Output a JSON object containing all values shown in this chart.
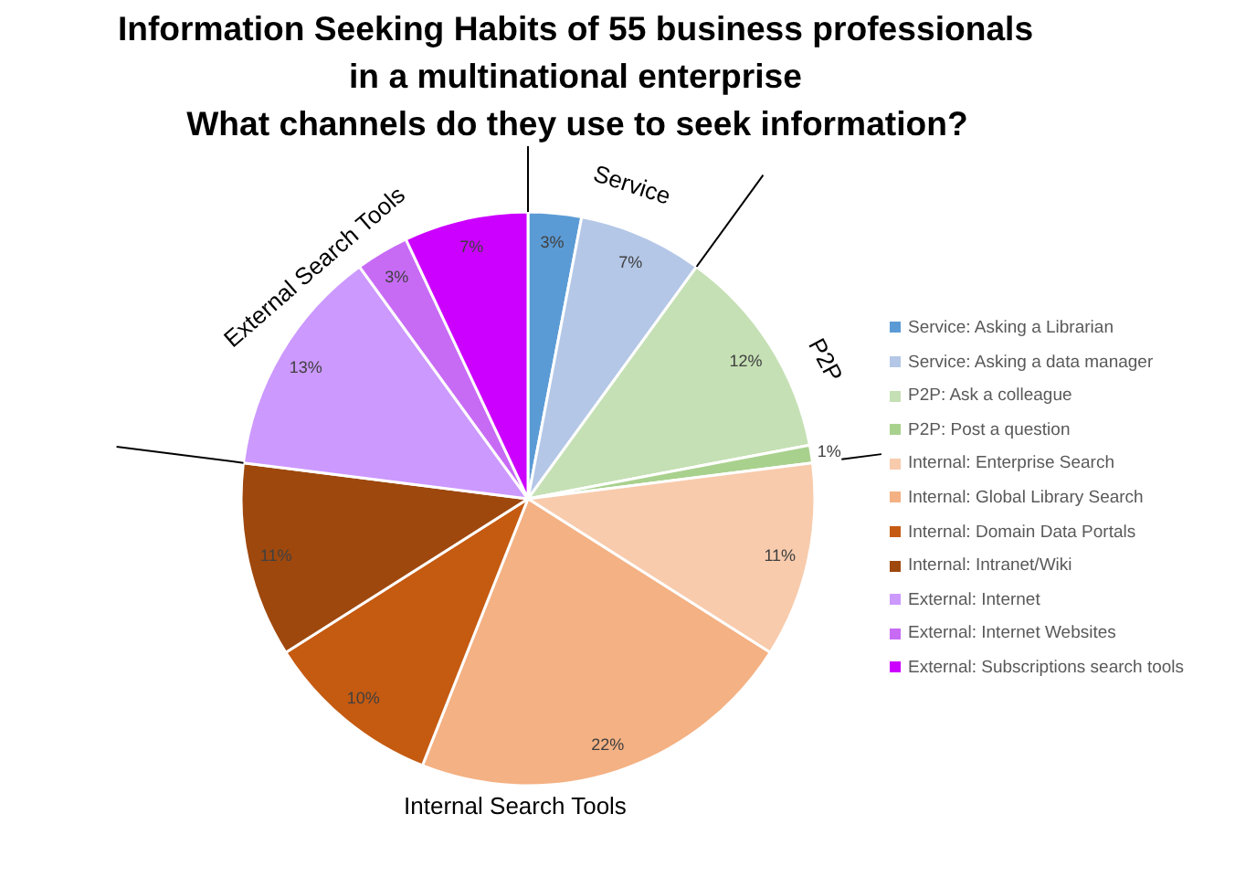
{
  "chart_data": {
    "type": "pie",
    "title": "Information Seeking Habits of 55 business professionals in a multinational enterprise",
    "subtitle": "What channels do they use to seek information?",
    "categories": [
      "Service: Asking a Librarian",
      "Service: Asking a data manager",
      "P2P: Ask a colleague",
      "P2P: Post a question",
      "Internal: Enterprise Search",
      "Internal: Global Library Search",
      "Internal: Domain Data Portals",
      "Internal: Intranet/Wiki",
      "External: Internet",
      "External: Internet Websites",
      "External: Subscriptions search tools"
    ],
    "values": [
      3,
      7,
      12,
      1,
      11,
      22,
      10,
      11,
      13,
      3,
      7
    ],
    "colors": [
      "#5b9bd5",
      "#b4c7e7",
      "#c5e0b4",
      "#a9d18e",
      "#f8cbad",
      "#f4b183",
      "#c55a11",
      "#9e480e",
      "#cc99ff",
      "#c76bf5",
      "#cc00ff"
    ],
    "value_labels": [
      "3%",
      "7%",
      "12%",
      "1%",
      "11%",
      "22%",
      "10%",
      "11%",
      "13%",
      "3%",
      "7%"
    ],
    "legend": "right",
    "annotations": [
      "Service",
      "P2P",
      "Internal Search Tools",
      "External Search Tools"
    ]
  }
}
